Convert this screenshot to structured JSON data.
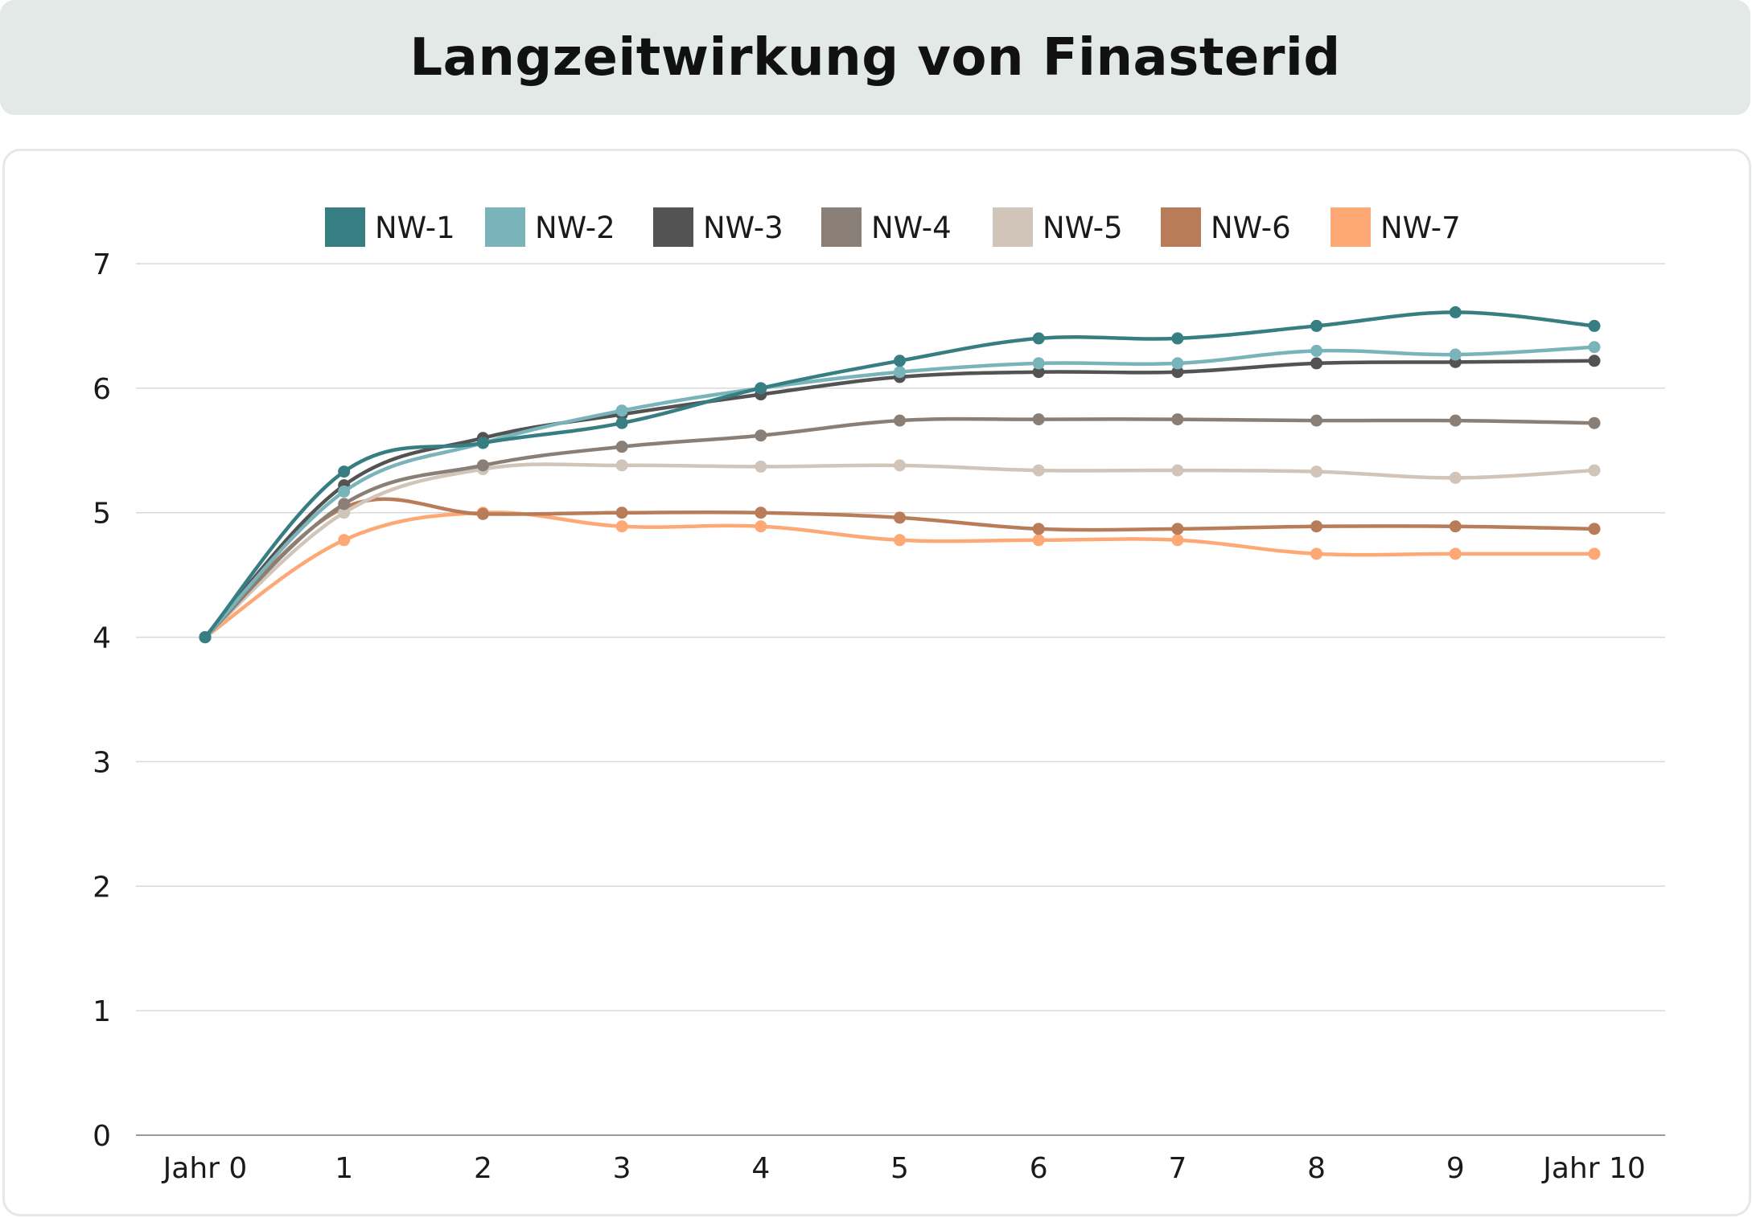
{
  "title": "Langzeitwirkung von Finasterid",
  "chart_data": {
    "type": "line",
    "title": "Langzeitwirkung von Finasterid",
    "xlabel": "",
    "ylabel": "",
    "categories": [
      "Jahr 0",
      "1",
      "2",
      "3",
      "4",
      "5",
      "6",
      "7",
      "8",
      "9",
      "Jahr 10"
    ],
    "ylim": [
      0,
      7
    ],
    "yticks": [
      "0",
      "1",
      "2",
      "3",
      "4",
      "5",
      "6",
      "7"
    ],
    "grid": true,
    "legend_position": "top",
    "series": [
      {
        "name": "NW-1",
        "color": "#367e82",
        "values": [
          4.0,
          5.33,
          5.56,
          5.72,
          6.0,
          6.22,
          6.4,
          6.4,
          6.5,
          6.61,
          6.5
        ]
      },
      {
        "name": "NW-2",
        "color": "#79b4bb",
        "values": [
          4.0,
          5.17,
          5.56,
          5.82,
          6.0,
          6.13,
          6.2,
          6.2,
          6.3,
          6.27,
          6.33
        ]
      },
      {
        "name": "NW-3",
        "color": "#535353",
        "values": [
          4.0,
          5.22,
          5.6,
          5.79,
          5.95,
          6.09,
          6.13,
          6.13,
          6.2,
          6.21,
          6.22
        ]
      },
      {
        "name": "NW-4",
        "color": "#8a7f76",
        "values": [
          4.0,
          5.07,
          5.38,
          5.53,
          5.62,
          5.74,
          5.75,
          5.75,
          5.74,
          5.74,
          5.72
        ]
      },
      {
        "name": "NW-5",
        "color": "#d1c4b9",
        "values": [
          4.0,
          5.0,
          5.35,
          5.38,
          5.37,
          5.38,
          5.34,
          5.34,
          5.33,
          5.28,
          5.34
        ]
      },
      {
        "name": "NW-6",
        "color": "#b87c58",
        "values": [
          4.0,
          5.04,
          4.99,
          5.0,
          5.0,
          4.96,
          4.87,
          4.87,
          4.89,
          4.89,
          4.87
        ]
      },
      {
        "name": "NW-7",
        "color": "#fda875",
        "values": [
          4.0,
          4.78,
          5.0,
          4.89,
          4.89,
          4.78,
          4.78,
          4.78,
          4.67,
          4.67,
          4.67
        ]
      }
    ]
  }
}
